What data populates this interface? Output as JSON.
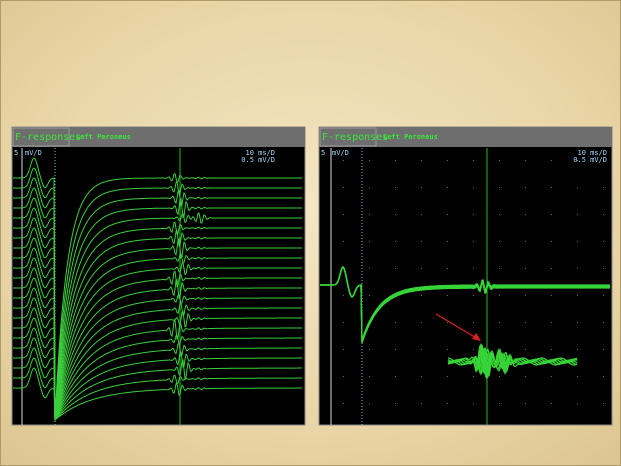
{
  "panels": [
    {
      "header": {
        "title": "F-responses",
        "subtitle": "Left Peroneus"
      },
      "sensitivity": "5",
      "sensitivity_unit": "mV/D",
      "sweep": "10 ms/D",
      "gain": "0.5 mV/D"
    },
    {
      "header": {
        "title": "F-responses",
        "subtitle": "Left Peroneus"
      },
      "sensitivity": "5",
      "sensitivity_unit": "mV/D",
      "sweep": "10 ms/D",
      "gain": "0.5 mV/D"
    }
  ]
}
